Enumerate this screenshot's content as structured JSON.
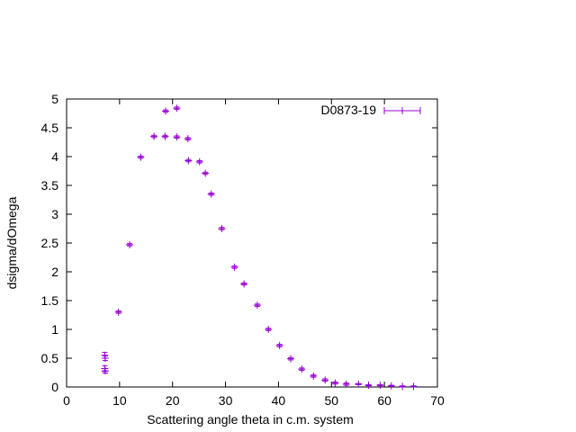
{
  "chart_data": {
    "type": "scatter",
    "title": "",
    "xlabel": "Scattering angle theta in c.m. system",
    "ylabel": "dsigma/dOmega",
    "xlim": [
      0,
      70
    ],
    "ylim": [
      0,
      5
    ],
    "xticks": [
      "0",
      "10",
      "20",
      "30",
      "40",
      "50",
      "60",
      "70"
    ],
    "yticks": [
      "0",
      "0.5",
      "1",
      "1.5",
      "2",
      "2.5",
      "3",
      "3.5",
      "4",
      "4.5",
      "5"
    ],
    "grid": false,
    "legend_position": "top-right",
    "series_color": "#9400D3",
    "series": [
      {
        "name": "D0873-19",
        "error_bars": true,
        "points": [
          {
            "x": 7.2,
            "y": 0.55,
            "err": 0.05
          },
          {
            "x": 7.3,
            "y": 0.5,
            "err": 0.04
          },
          {
            "x": 7.2,
            "y": 0.32,
            "err": 0.05
          },
          {
            "x": 7.3,
            "y": 0.28,
            "err": 0.04
          },
          {
            "x": 9.8,
            "y": 1.3,
            "err": 0.02
          },
          {
            "x": 11.9,
            "y": 2.47,
            "err": 0.02
          },
          {
            "x": 14.0,
            "y": 3.99,
            "err": 0.02
          },
          {
            "x": 16.5,
            "y": 4.35,
            "err": 0.02
          },
          {
            "x": 18.6,
            "y": 4.35,
            "err": 0.02
          },
          {
            "x": 18.7,
            "y": 4.79,
            "err": 0.02
          },
          {
            "x": 20.8,
            "y": 4.34,
            "err": 0.02
          },
          {
            "x": 20.8,
            "y": 4.84,
            "err": 0.02
          },
          {
            "x": 22.9,
            "y": 4.31,
            "err": 0.02
          },
          {
            "x": 23.0,
            "y": 3.93,
            "err": 0.02
          },
          {
            "x": 25.1,
            "y": 3.91,
            "err": 0.02
          },
          {
            "x": 26.2,
            "y": 3.71,
            "err": 0.02
          },
          {
            "x": 27.3,
            "y": 3.35,
            "err": 0.02
          },
          {
            "x": 29.3,
            "y": 2.75,
            "err": 0.02
          },
          {
            "x": 31.7,
            "y": 2.08,
            "err": 0.02
          },
          {
            "x": 33.5,
            "y": 1.79,
            "err": 0.02
          },
          {
            "x": 36.0,
            "y": 1.42,
            "err": 0.02
          },
          {
            "x": 38.1,
            "y": 1.0,
            "err": 0.02
          },
          {
            "x": 40.2,
            "y": 0.72,
            "err": 0.02
          },
          {
            "x": 42.3,
            "y": 0.49,
            "err": 0.02
          },
          {
            "x": 44.4,
            "y": 0.31,
            "err": 0.02
          },
          {
            "x": 46.6,
            "y": 0.19,
            "err": 0.02
          },
          {
            "x": 48.8,
            "y": 0.12,
            "err": 0.02
          },
          {
            "x": 50.7,
            "y": 0.07,
            "err": 0.02
          },
          {
            "x": 52.8,
            "y": 0.05,
            "err": 0.02
          },
          {
            "x": 55.1,
            "y": 0.05,
            "err": 0.01
          },
          {
            "x": 57.0,
            "y": 0.03,
            "err": 0.01
          },
          {
            "x": 59.2,
            "y": 0.03,
            "err": 0.01
          },
          {
            "x": 61.3,
            "y": 0.02,
            "err": 0.01
          },
          {
            "x": 63.4,
            "y": 0.01,
            "err": 0.01
          },
          {
            "x": 65.5,
            "y": 0.01,
            "err": 0.01
          }
        ]
      }
    ]
  }
}
